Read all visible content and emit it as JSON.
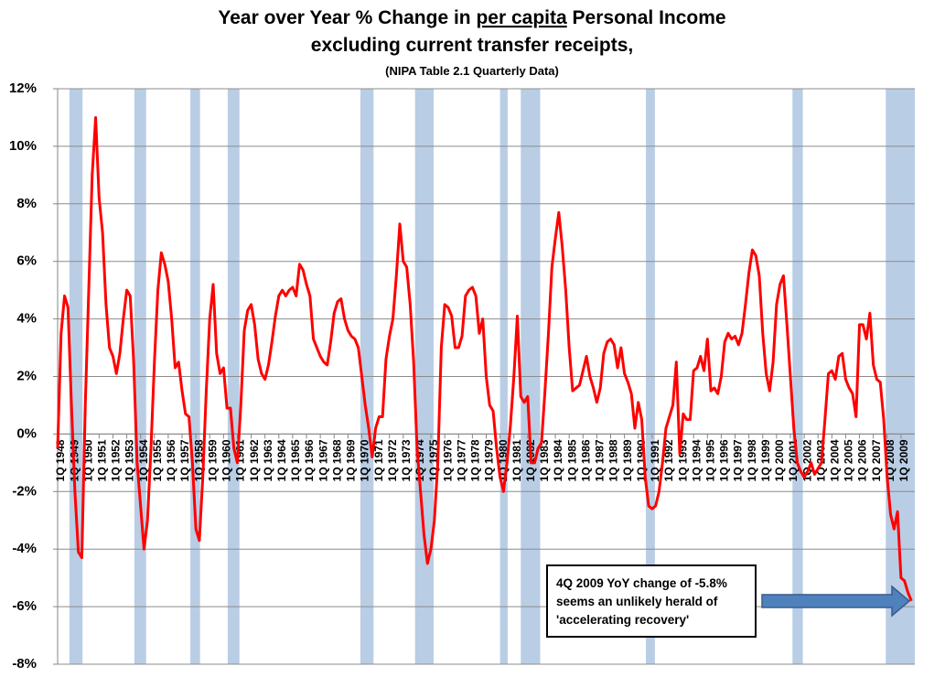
{
  "chart_data": {
    "type": "line",
    "title": "Year over Year % Change in",
    "title_emphasis": "per capita",
    "title_rest": "Personal Income",
    "title_line2": "excluding current transfer receipts,",
    "subtitle": "(NIPA Table 2.1 Quarterly  Data)",
    "annotation": [
      "4Q 2009 YoY change of -5.8%",
      "seems an unlikely herald of",
      "'accelerating recovery'"
    ],
    "color": "#ff0000",
    "shade_color": "#b9cde5",
    "grid": true,
    "shaded_periods": [
      [
        1948.85,
        1949.8
      ],
      [
        1953.55,
        1954.4
      ],
      [
        1957.6,
        1958.3
      ],
      [
        1960.3,
        1961.15
      ],
      [
        1969.9,
        1970.85
      ],
      [
        1973.85,
        1975.2
      ],
      [
        1980.0,
        1980.55
      ],
      [
        1981.5,
        1982.9
      ],
      [
        1990.55,
        1991.2
      ],
      [
        2001.15,
        2001.9
      ],
      [
        2007.9,
        2010
      ]
    ],
    "xlim": [
      1948,
      2010
    ],
    "ylim": [
      -8,
      12
    ],
    "yticks": [
      {
        "value": -8,
        "label": "-8%"
      },
      {
        "value": -6,
        "label": "-6%"
      },
      {
        "value": -4,
        "label": "-4%"
      },
      {
        "value": -2,
        "label": "-2%"
      },
      {
        "value": 0,
        "label": "0%"
      },
      {
        "value": 2,
        "label": "2%"
      },
      {
        "value": 4,
        "label": "4%"
      },
      {
        "value": 6,
        "label": "6%"
      },
      {
        "value": 8,
        "label": "8%"
      },
      {
        "value": 10,
        "label": "10%"
      },
      {
        "value": 12,
        "label": "12%"
      }
    ],
    "xticks": [
      {
        "value": 1948,
        "label": "1Q 1948"
      },
      {
        "value": 1949,
        "label": "1Q 1949"
      },
      {
        "value": 1950,
        "label": "1Q 1950"
      },
      {
        "value": 1951,
        "label": "1Q 1951"
      },
      {
        "value": 1952,
        "label": "1Q 1952"
      },
      {
        "value": 1953,
        "label": "1Q 1953"
      },
      {
        "value": 1954,
        "label": "1Q 1954"
      },
      {
        "value": 1955,
        "label": "1Q 1955"
      },
      {
        "value": 1956,
        "label": "1Q 1956"
      },
      {
        "value": 1957,
        "label": "1Q 1957"
      },
      {
        "value": 1958,
        "label": "1Q 1958"
      },
      {
        "value": 1959,
        "label": "1Q 1959"
      },
      {
        "value": 1960,
        "label": "1Q 1960"
      },
      {
        "value": 1961,
        "label": "1Q 1961"
      },
      {
        "value": 1962,
        "label": "1Q 1962"
      },
      {
        "value": 1963,
        "label": "1Q 1963"
      },
      {
        "value": 1964,
        "label": "1Q 1964"
      },
      {
        "value": 1965,
        "label": "1Q 1965"
      },
      {
        "value": 1966,
        "label": "1Q 1966"
      },
      {
        "value": 1967,
        "label": "1Q 1967"
      },
      {
        "value": 1968,
        "label": "1Q 1968"
      },
      {
        "value": 1969,
        "label": "1Q 1969"
      },
      {
        "value": 1970,
        "label": "1Q 1970"
      },
      {
        "value": 1971,
        "label": "1Q 1971"
      },
      {
        "value": 1972,
        "label": "1Q 1972"
      },
      {
        "value": 1973,
        "label": "1Q 1973"
      },
      {
        "value": 1974,
        "label": "1Q 1974"
      },
      {
        "value": 1975,
        "label": "1Q 1975"
      },
      {
        "value": 1976,
        "label": "1Q 1976"
      },
      {
        "value": 1977,
        "label": "1Q 1977"
      },
      {
        "value": 1978,
        "label": "1Q 1978"
      },
      {
        "value": 1979,
        "label": "1Q 1979"
      },
      {
        "value": 1980,
        "label": "1Q 1980"
      },
      {
        "value": 1981,
        "label": "1Q 1981"
      },
      {
        "value": 1982,
        "label": "1Q 1982"
      },
      {
        "value": 1983,
        "label": "1Q 1983"
      },
      {
        "value": 1984,
        "label": "1Q 1984"
      },
      {
        "value": 1985,
        "label": "1Q 1985"
      },
      {
        "value": 1986,
        "label": "1Q 1986"
      },
      {
        "value": 1987,
        "label": "1Q 1987"
      },
      {
        "value": 1988,
        "label": "1Q 1988"
      },
      {
        "value": 1989,
        "label": "1Q 1989"
      },
      {
        "value": 1990,
        "label": "1Q 1990"
      },
      {
        "value": 1991,
        "label": "1Q 1991"
      },
      {
        "value": 1992,
        "label": "1Q 1992"
      },
      {
        "value": 1993,
        "label": "1Q 1993"
      },
      {
        "value": 1994,
        "label": "1Q 1994"
      },
      {
        "value": 1995,
        "label": "1Q 1995"
      },
      {
        "value": 1996,
        "label": "1Q 1996"
      },
      {
        "value": 1997,
        "label": "1Q 1997"
      },
      {
        "value": 1998,
        "label": "1Q 1998"
      },
      {
        "value": 1999,
        "label": "1Q 1999"
      },
      {
        "value": 2000,
        "label": "1Q 2000"
      },
      {
        "value": 2001,
        "label": "1Q 2001"
      },
      {
        "value": 2002,
        "label": "1Q 2002"
      },
      {
        "value": 2003,
        "label": "1Q 2003"
      },
      {
        "value": 2004,
        "label": "1Q 2004"
      },
      {
        "value": 2005,
        "label": "1Q 2005"
      },
      {
        "value": 2006,
        "label": "1Q 2006"
      },
      {
        "value": 2007,
        "label": "1Q 2007"
      },
      {
        "value": 2008,
        "label": "1Q 2008"
      },
      {
        "value": 2009,
        "label": "1Q 2009"
      }
    ],
    "x": [
      1948,
      1948.25,
      1948.5,
      1948.75,
      1949,
      1949.25,
      1949.5,
      1949.75,
      1950,
      1950.25,
      1950.5,
      1950.75,
      1951,
      1951.25,
      1951.5,
      1951.75,
      1952,
      1952.25,
      1952.5,
      1952.75,
      1953,
      1953.25,
      1953.5,
      1953.75,
      1954,
      1954.25,
      1954.5,
      1954.75,
      1955,
      1955.25,
      1955.5,
      1955.75,
      1956,
      1956.25,
      1956.5,
      1956.75,
      1957,
      1957.25,
      1957.5,
      1957.75,
      1958,
      1958.25,
      1958.5,
      1958.75,
      1959,
      1959.25,
      1959.5,
      1959.75,
      1960,
      1960.25,
      1960.5,
      1960.75,
      1961,
      1961.25,
      1961.5,
      1961.75,
      1962,
      1962.25,
      1962.5,
      1962.75,
      1963,
      1963.25,
      1963.5,
      1963.75,
      1964,
      1964.25,
      1964.5,
      1964.75,
      1965,
      1965.25,
      1965.5,
      1965.75,
      1966,
      1966.25,
      1966.5,
      1966.75,
      1967,
      1967.25,
      1967.5,
      1967.75,
      1968,
      1968.25,
      1968.5,
      1968.75,
      1969,
      1969.25,
      1969.5,
      1969.75,
      1970,
      1970.25,
      1970.5,
      1970.75,
      1971,
      1971.25,
      1971.5,
      1971.75,
      1972,
      1972.25,
      1972.5,
      1972.75,
      1973,
      1973.25,
      1973.5,
      1973.75,
      1974,
      1974.25,
      1974.5,
      1974.75,
      1975,
      1975.25,
      1975.5,
      1975.75,
      1976,
      1976.25,
      1976.5,
      1976.75,
      1977,
      1977.25,
      1977.5,
      1977.75,
      1978,
      1978.25,
      1978.5,
      1978.75,
      1979,
      1979.25,
      1979.5,
      1979.75,
      1980,
      1980.25,
      1980.5,
      1980.75,
      1981,
      1981.25,
      1981.5,
      1981.75,
      1982,
      1982.25,
      1982.5,
      1982.75,
      1983,
      1983.25,
      1983.5,
      1983.75,
      1984,
      1984.25,
      1984.5,
      1984.75,
      1985,
      1985.25,
      1985.5,
      1985.75,
      1986,
      1986.25,
      1986.5,
      1986.75,
      1987,
      1987.25,
      1987.5,
      1987.75,
      1988,
      1988.25,
      1988.5,
      1988.75,
      1989,
      1989.25,
      1989.5,
      1989.75,
      1990,
      1990.25,
      1990.5,
      1990.75,
      1991,
      1991.25,
      1991.5,
      1991.75,
      1992,
      1992.25,
      1992.5,
      1992.75,
      1993,
      1993.25,
      1993.5,
      1993.75,
      1994,
      1994.25,
      1994.5,
      1994.75,
      1995,
      1995.25,
      1995.5,
      1995.75,
      1996,
      1996.25,
      1996.5,
      1996.75,
      1997,
      1997.25,
      1997.5,
      1997.75,
      1998,
      1998.25,
      1998.5,
      1998.75,
      1999,
      1999.25,
      1999.5,
      1999.75,
      2000,
      2000.25,
      2000.5,
      2000.75,
      2001,
      2001.25,
      2001.5,
      2001.75,
      2002,
      2002.25,
      2002.5,
      2002.75,
      2003,
      2003.25,
      2003.5,
      2003.75,
      2004,
      2004.25,
      2004.5,
      2004.75,
      2005,
      2005.25,
      2005.5,
      2005.75,
      2006,
      2006.25,
      2006.5,
      2006.75,
      2007,
      2007.25,
      2007.5,
      2007.75,
      2008,
      2008.25,
      2008.5,
      2008.75,
      2009,
      2009.25,
      2009.5,
      2009.75
    ],
    "values": [
      -0.5,
      3.5,
      4.8,
      4.4,
      1.0,
      -2.0,
      -4.1,
      -4.3,
      1.0,
      5.0,
      9.0,
      11.0,
      8.2,
      7.0,
      4.5,
      3.0,
      2.7,
      2.1,
      2.8,
      4.0,
      5.0,
      4.8,
      2.5,
      -1.0,
      -2.5,
      -4.0,
      -3.0,
      -0.5,
      2.5,
      5.0,
      6.3,
      5.9,
      5.3,
      4.0,
      2.3,
      2.5,
      1.5,
      0.7,
      0.6,
      -1.0,
      -3.3,
      -3.7,
      -1.5,
      1.5,
      4.0,
      5.2,
      2.8,
      2.1,
      2.3,
      0.9,
      0.9,
      -0.5,
      -1.0,
      1.0,
      3.6,
      4.3,
      4.5,
      3.8,
      2.6,
      2.1,
      1.9,
      2.4,
      3.2,
      4.1,
      4.8,
      5.0,
      4.8,
      5.0,
      5.1,
      4.8,
      5.9,
      5.7,
      5.2,
      4.8,
      3.3,
      3.0,
      2.7,
      2.5,
      2.4,
      3.2,
      4.2,
      4.6,
      4.7,
      4.0,
      3.6,
      3.4,
      3.3,
      3.0,
      2.0,
      1.0,
      0.2,
      -0.8,
      0.2,
      0.6,
      0.6,
      2.6,
      3.4,
      4.0,
      5.5,
      7.3,
      6.0,
      5.8,
      4.5,
      2.5,
      -0.5,
      -2.0,
      -3.5,
      -4.5,
      -4.0,
      -3.0,
      -1.0,
      3.0,
      4.5,
      4.4,
      4.1,
      3.0,
      3.0,
      3.4,
      4.8,
      5.0,
      5.1,
      4.8,
      3.5,
      4.0,
      2.0,
      1.0,
      0.8,
      -0.5,
      -1.5,
      -2.0,
      -1.0,
      0.3,
      2.0,
      4.1,
      1.3,
      1.1,
      1.3,
      -1.0,
      -1.0,
      -0.5,
      -0.3,
      1.5,
      3.5,
      5.8,
      6.8,
      7.7,
      6.5,
      5.0,
      3.0,
      1.5,
      1.6,
      1.7,
      2.2,
      2.7,
      2.0,
      1.6,
      1.1,
      1.6,
      2.8,
      3.2,
      3.3,
      3.1,
      2.3,
      3.0,
      2.1,
      1.8,
      1.4,
      0.2,
      1.1,
      0.5,
      -1.5,
      -2.5,
      -2.6,
      -2.5,
      -2.0,
      -1.0,
      0.2,
      0.6,
      1.0,
      2.5,
      -0.7,
      0.7,
      0.5,
      0.5,
      2.2,
      2.3,
      2.7,
      2.2,
      3.3,
      1.5,
      1.6,
      1.4,
      2.0,
      3.2,
      3.5,
      3.3,
      3.4,
      3.1,
      3.5,
      4.5,
      5.6,
      6.4,
      6.2,
      5.5,
      3.5,
      2.1,
      1.5,
      2.5,
      4.5,
      5.2,
      5.5,
      3.8,
      2.0,
      0.2,
      -1.0,
      -1.3,
      -1.5,
      -1.3,
      -1.0,
      -1.4,
      -1.2,
      -1.0,
      0.5,
      2.1,
      2.2,
      1.9,
      2.7,
      2.8,
      1.9,
      1.6,
      1.4,
      0.6,
      3.8,
      3.8,
      3.3,
      4.2,
      2.4,
      1.9,
      1.8,
      0.5,
      -1.5,
      -2.8,
      -3.3,
      -2.7,
      -5.0,
      -5.1,
      -5.5,
      -5.8
    ]
  }
}
